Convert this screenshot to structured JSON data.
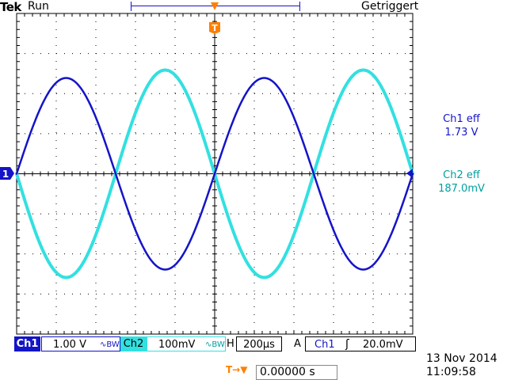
{
  "header": {
    "brand": "Tek",
    "acq_state": "Run",
    "trigger_status": "Getriggert",
    "trigger_marker": "T"
  },
  "channel1_marker": "1",
  "measurements": [
    {
      "label": "Ch1 eff",
      "value": "1.73 V",
      "color": "#1414c8"
    },
    {
      "label": "Ch2 eff",
      "value": "187.0mV",
      "color": "#00a0a0"
    }
  ],
  "bottom_bar": {
    "ch1_label": "Ch1",
    "ch1_scale": "1.00 V",
    "ch1_coupling": "∿BW",
    "ch2_label": "Ch2",
    "ch2_scale": "100mV",
    "ch2_coupling": "∿BW",
    "h_label": "H",
    "h_scale": "200µs",
    "trig_mode": "A",
    "trig_source": "Ch1",
    "trig_slope": "ʃ",
    "trig_level": "20.0mV"
  },
  "trigger_position": {
    "icon": "T→▼",
    "value": "0.00000 s"
  },
  "datetime": {
    "date": "13 Nov 2014",
    "time": "11:09:58"
  },
  "colors": {
    "ch1": "#1414c8",
    "ch2": "#33e0e0",
    "trigger": "#ff8000",
    "grid": "#000000"
  }
}
